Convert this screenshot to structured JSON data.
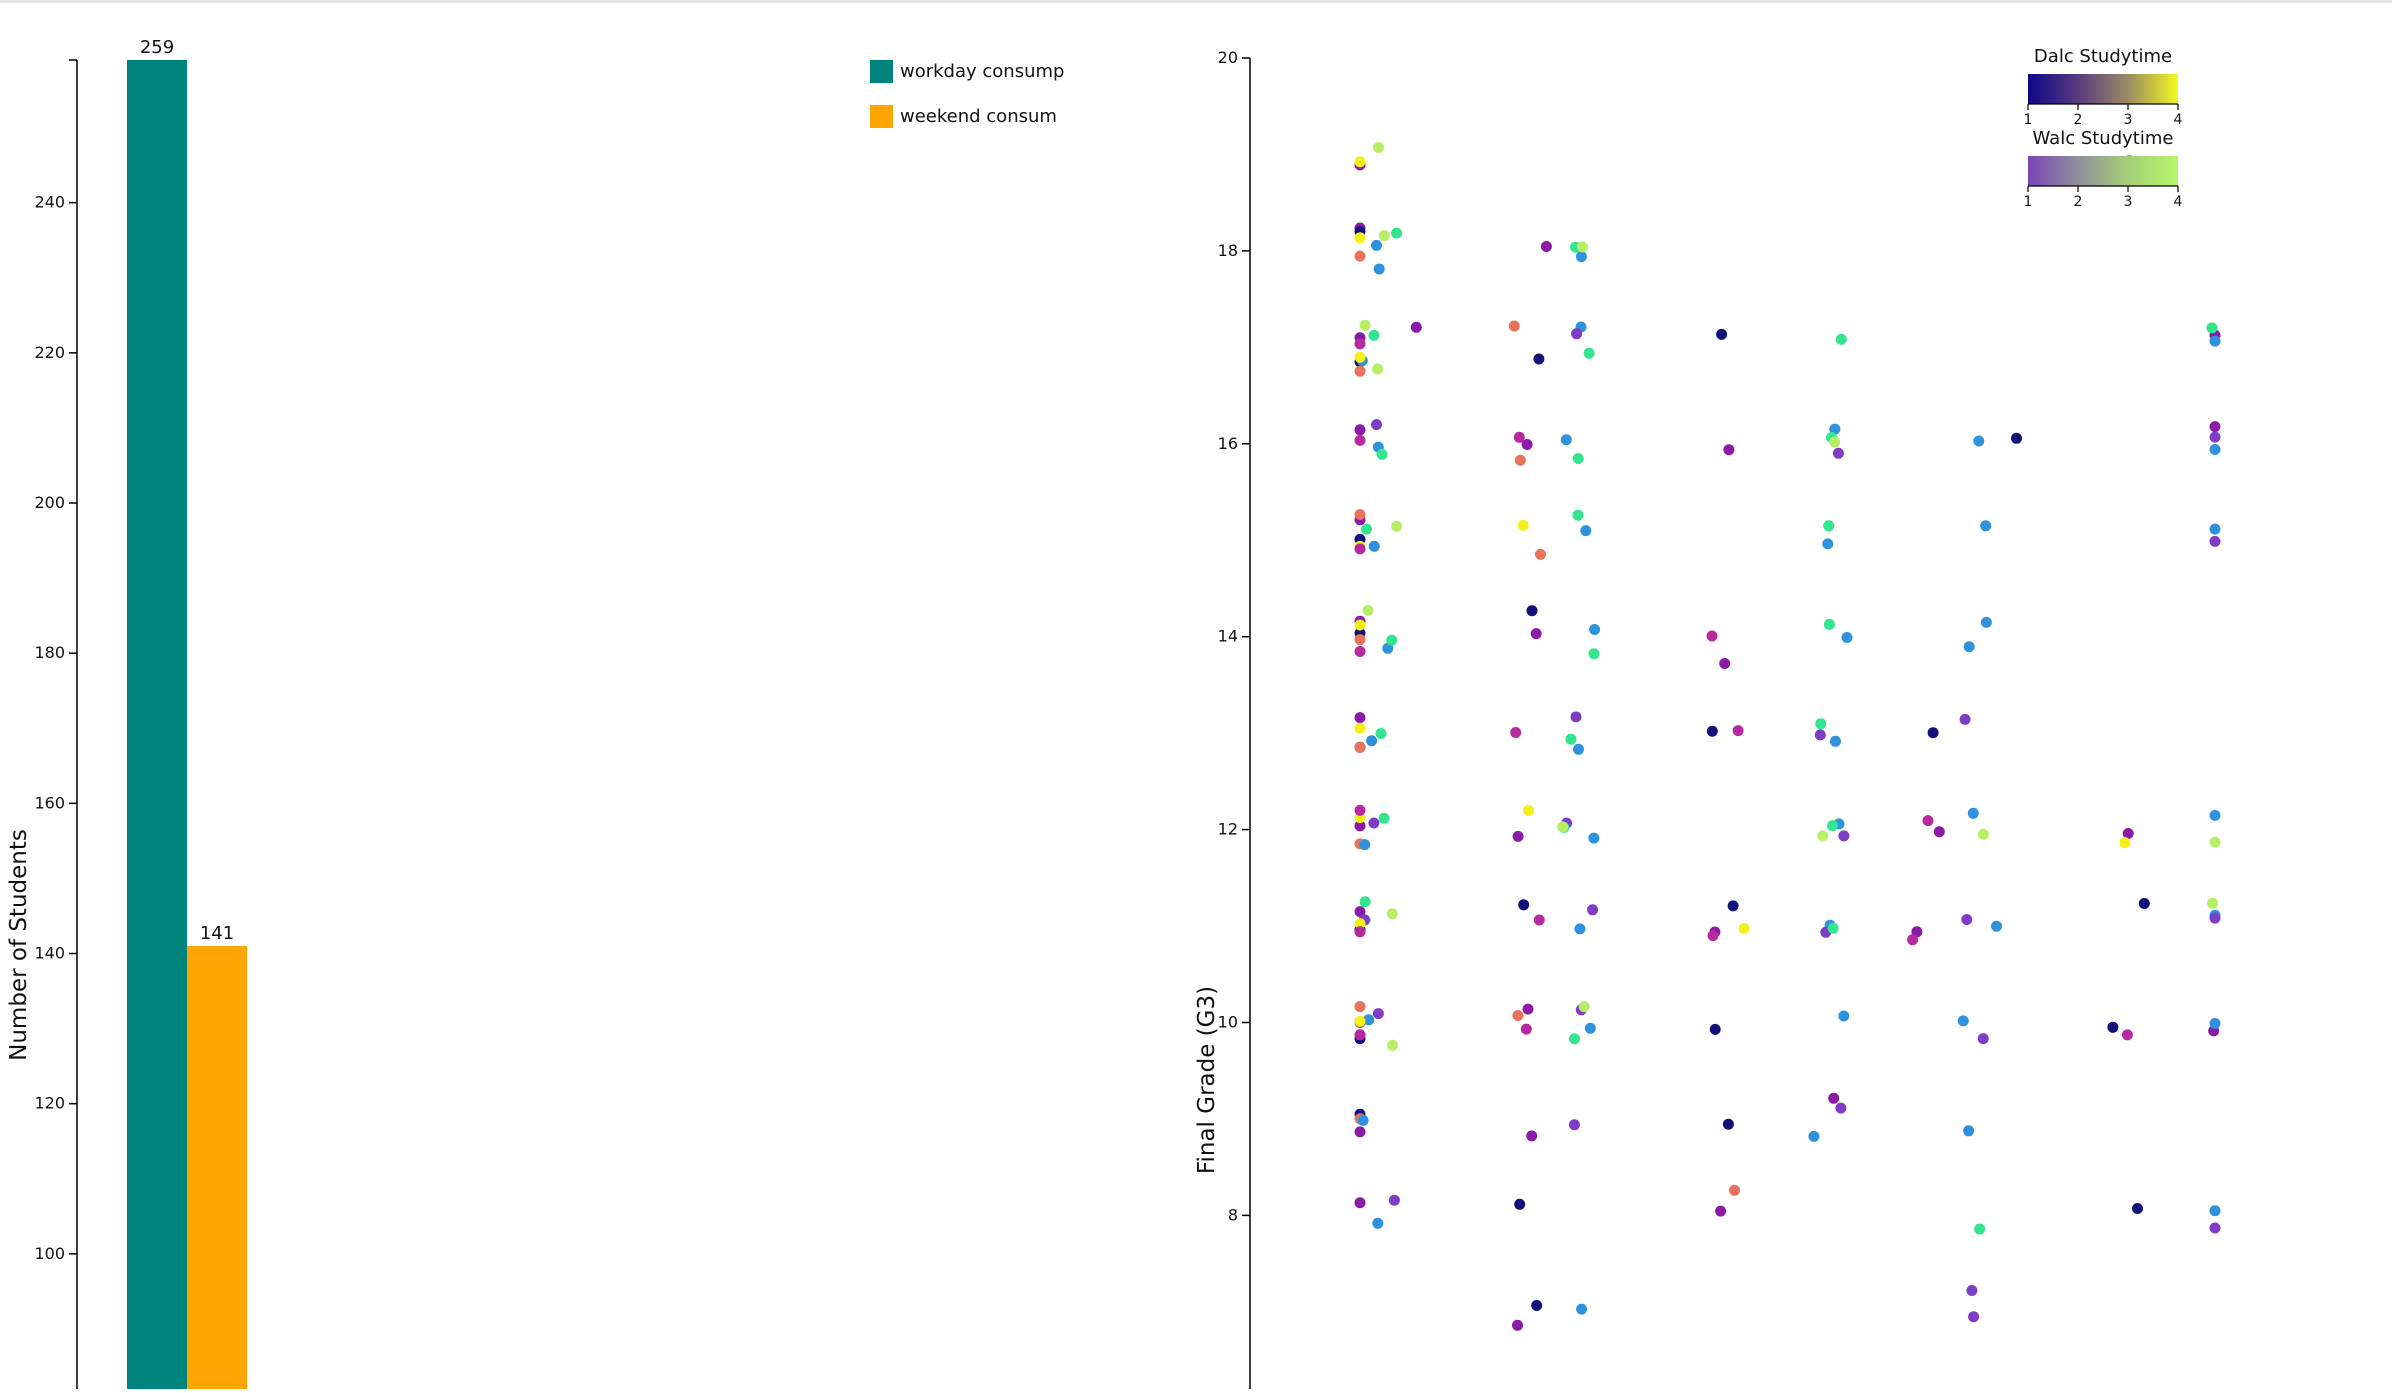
{
  "colors": {
    "workday": "#00847e",
    "weekend": "#ffa500",
    "axis": "#000000"
  },
  "chart_data": [
    {
      "type": "bar",
      "categories": [
        "workday consumption",
        "weekend consumption"
      ],
      "values": [
        259,
        141
      ],
      "value_labels": [
        "259",
        "141"
      ],
      "xlabel": "",
      "ylabel": "Number of Students",
      "ylim": [
        82,
        259
      ],
      "yticks": [
        100,
        120,
        140,
        160,
        180,
        200,
        220,
        240
      ],
      "grid": false,
      "legend": {
        "placement": "top-right",
        "entries": [
          {
            "label": "workday consump",
            "color": "#00847e"
          },
          {
            "label": "weekend consum",
            "color": "#ffa500"
          }
        ]
      }
    },
    {
      "type": "scatter",
      "xlabel": "",
      "ylabel": "Final Grade (G3)",
      "ylim": [
        6.2,
        20
      ],
      "yticks": [
        8,
        10,
        12,
        14,
        16,
        18,
        20
      ],
      "grid": false,
      "color_legends": [
        {
          "title": "Dalc Studytime",
          "scale": "plasma-like",
          "stops": [
            "#0d0887",
            "#5a3a7f",
            "#9b8a63",
            "#f0f921"
          ],
          "ticks": [
            "1",
            "2",
            "3",
            "4"
          ]
        },
        {
          "title": "Walc Studytime",
          "scale": "purple-green",
          "stops": [
            "#7b45b5",
            "#8f8f9a",
            "#a5cf78",
            "#b4f76a"
          ],
          "ticks": [
            "1",
            "2",
            "3",
            "4"
          ]
        }
      ],
      "point_colors": [
        "#12117a",
        "#8b1aa6",
        "#b62aa0",
        "#e8735d",
        "#2f92dc",
        "#7f3cc5",
        "#32e58e",
        "#b6ef66",
        "#f2f218"
      ],
      "series": [
        {
          "name": "",
          "color": "#8b1aa6",
          "points": [
            [
              1,
              18.9
            ],
            [
              1,
              18.2
            ],
            [
              1,
              17.1
            ],
            [
              1,
              16.2
            ],
            [
              1,
              15.2
            ],
            [
              1,
              14.2
            ],
            [
              1,
              13.1
            ],
            [
              1,
              12.0
            ],
            [
              1,
              11.1
            ],
            [
              1,
              10.0
            ],
            [
              1,
              8.8
            ],
            [
              1,
              8.2
            ],
            [
              2,
              17.2
            ],
            [
              3,
              18.0
            ],
            [
              3,
              16.0
            ],
            [
              3,
              14.0
            ],
            [
              3,
              12.0
            ],
            [
              3,
              10.1
            ],
            [
              3,
              8.8
            ],
            [
              3,
              6.9
            ],
            [
              5,
              13.7
            ],
            [
              5,
              11.0
            ],
            [
              5,
              8.1
            ],
            [
              5,
              15.9
            ],
            [
              6,
              9.2
            ],
            [
              7,
              12.0
            ],
            [
              7,
              10.9
            ],
            [
              9,
              11.9
            ],
            [
              10,
              9.9
            ],
            [
              10,
              16.2
            ],
            [
              10,
              17.1
            ]
          ]
        },
        {
          "name": "",
          "color": "#12117a",
          "points": [
            [
              1,
              18.2
            ],
            [
              1,
              16.9
            ],
            [
              1,
              15.0
            ],
            [
              1,
              14.0
            ],
            [
              1,
              12.8
            ],
            [
              1,
              11.0
            ],
            [
              1,
              9.9
            ],
            [
              1,
              9.1
            ],
            [
              3,
              16.9
            ],
            [
              3,
              14.2
            ],
            [
              3,
              11.2
            ],
            [
              3,
              8.1
            ],
            [
              3,
              7.1
            ],
            [
              5,
              17.2
            ],
            [
              5,
              13.0
            ],
            [
              5,
              11.2
            ],
            [
              5,
              10.0
            ],
            [
              5,
              9.0
            ],
            [
              7,
              13.0
            ],
            [
              8,
              16.1
            ],
            [
              9,
              11.2
            ],
            [
              9,
              9.9
            ],
            [
              9,
              8.1
            ]
          ]
        },
        {
          "name": "",
          "color": "#e8735d",
          "points": [
            [
              1,
              18.0
            ],
            [
              1,
              16.8
            ],
            [
              1,
              15.2
            ],
            [
              1,
              13.9
            ],
            [
              1,
              12.9
            ],
            [
              1,
              11.8
            ],
            [
              1,
              10.1
            ],
            [
              1,
              9.0
            ],
            [
              3,
              17.2
            ],
            [
              3,
              15.8
            ],
            [
              3,
              14.8
            ],
            [
              3,
              10.0
            ],
            [
              5,
              8.2
            ]
          ]
        },
        {
          "name": "",
          "color": "#2f92dc",
          "points": [
            [
              1.5,
              18.0
            ],
            [
              1.5,
              17.8
            ],
            [
              1.5,
              16.9
            ],
            [
              1.5,
              16.0
            ],
            [
              1.5,
              15.0
            ],
            [
              1.5,
              13.9
            ],
            [
              1.5,
              12.9
            ],
            [
              1.5,
              11.9
            ],
            [
              1.5,
              11.0
            ],
            [
              1.5,
              10.0
            ],
            [
              1.5,
              9.0
            ],
            [
              1.5,
              7.9
            ],
            [
              3.5,
              18.0
            ],
            [
              3.5,
              17.2
            ],
            [
              3.5,
              16.1
            ],
            [
              3.5,
              15.1
            ],
            [
              3.5,
              14.1
            ],
            [
              3.5,
              12.9
            ],
            [
              3.5,
              11.9
            ],
            [
              3.5,
              11.0
            ],
            [
              3.5,
              10.0
            ],
            [
              3.5,
              7.1
            ],
            [
              6,
              16.2
            ],
            [
              6,
              14.9
            ],
            [
              6,
              14.0
            ],
            [
              6,
              12.9
            ],
            [
              6,
              12.1
            ],
            [
              6,
              11.0
            ],
            [
              6,
              10.1
            ],
            [
              6,
              8.8
            ],
            [
              7.5,
              16.1
            ],
            [
              7.5,
              15.1
            ],
            [
              7.5,
              14.1
            ],
            [
              7.5,
              13.9
            ],
            [
              7.5,
              12.1
            ],
            [
              7.5,
              11.0
            ],
            [
              7.5,
              10.0
            ],
            [
              7.5,
              8.9
            ],
            [
              10,
              17.1
            ],
            [
              10,
              16.0
            ],
            [
              10,
              15.1
            ],
            [
              10,
              12.1
            ],
            [
              10,
              11.1
            ],
            [
              10,
              10.0
            ],
            [
              10,
              8.0
            ],
            [
              9,
              18.9
            ]
          ]
        },
        {
          "name": "",
          "color": "#7f3cc5",
          "points": [
            [
              1.5,
              16.2
            ],
            [
              1.5,
              12.0
            ],
            [
              1.5,
              11.1
            ],
            [
              1.5,
              10.1
            ],
            [
              1.5,
              8.1
            ],
            [
              3.5,
              17.1
            ],
            [
              3.5,
              13.1
            ],
            [
              3.5,
              12.1
            ],
            [
              3.5,
              11.1
            ],
            [
              3.5,
              10.1
            ],
            [
              3.5,
              8.9
            ],
            [
              6,
              15.9
            ],
            [
              6,
              13.0
            ],
            [
              6,
              12.0
            ],
            [
              6,
              11.0
            ],
            [
              6,
              9.1
            ],
            [
              7.5,
              13.1
            ],
            [
              7.5,
              11.1
            ],
            [
              7.5,
              9.9
            ],
            [
              7.5,
              7.2
            ],
            [
              7.5,
              6.9
            ],
            [
              10,
              11.1
            ],
            [
              10,
              16.1
            ],
            [
              10,
              15.0
            ],
            [
              10,
              7.9
            ]
          ]
        },
        {
          "name": "",
          "color": "#32e58e",
          "points": [
            [
              1.5,
              18.2
            ],
            [
              1.5,
              17.1
            ],
            [
              1.5,
              15.9
            ],
            [
              1.5,
              15.1
            ],
            [
              1.5,
              14.0
            ],
            [
              1.5,
              13.0
            ],
            [
              1.5,
              12.1
            ],
            [
              1.5,
              11.2
            ],
            [
              3.5,
              18.1
            ],
            [
              3.5,
              17.0
            ],
            [
              3.5,
              15.9
            ],
            [
              3.5,
              15.2
            ],
            [
              3.5,
              13.8
            ],
            [
              3.5,
              12.9
            ],
            [
              3.5,
              12.0
            ],
            [
              3.5,
              9.9
            ],
            [
              6,
              17.1
            ],
            [
              6,
              16.0
            ],
            [
              6,
              15.1
            ],
            [
              6,
              14.1
            ],
            [
              6,
              13.1
            ],
            [
              6,
              12.0
            ],
            [
              6,
              11.0
            ],
            [
              7.5,
              7.8
            ],
            [
              10,
              17.2
            ]
          ]
        },
        {
          "name": "",
          "color": "#b6ef66",
          "points": [
            [
              1.5,
              19.0
            ],
            [
              1.5,
              18.1
            ],
            [
              1.5,
              17.2
            ],
            [
              1.5,
              16.8
            ],
            [
              1.5,
              15.2
            ],
            [
              1.5,
              14.2
            ],
            [
              1.5,
              11.2
            ],
            [
              1.5,
              9.8
            ],
            [
              3.5,
              18.1
            ],
            [
              3.5,
              12.0
            ],
            [
              3.5,
              10.1
            ],
            [
              6,
              16.0
            ],
            [
              6,
              12.0
            ],
            [
              7.5,
              11.9
            ],
            [
              10,
              11.9
            ],
            [
              10,
              11.2
            ]
          ]
        },
        {
          "name": "",
          "color": "#f2f218",
          "points": [
            [
              1,
              18.9
            ],
            [
              1,
              18.1
            ],
            [
              1,
              16.9
            ],
            [
              1,
              15.0
            ],
            [
              1,
              14.1
            ],
            [
              1,
              13.0
            ],
            [
              1,
              12.1
            ],
            [
              1,
              11.0
            ],
            [
              1,
              10.0
            ],
            [
              3,
              15.2
            ],
            [
              3,
              12.2
            ],
            [
              5,
              11.0
            ],
            [
              9,
              11.9
            ]
          ]
        },
        {
          "name": "",
          "color": "#b62aa0",
          "points": [
            [
              1,
              17.0
            ],
            [
              1,
              16.0
            ],
            [
              1,
              14.9
            ],
            [
              1,
              13.9
            ],
            [
              1,
              12.2
            ],
            [
              1,
              10.9
            ],
            [
              1,
              9.9
            ],
            [
              3,
              16.1
            ],
            [
              3,
              13.0
            ],
            [
              3,
              11.0
            ],
            [
              3,
              9.9
            ],
            [
              5,
              14.0
            ],
            [
              5,
              13.0
            ],
            [
              5,
              10.9
            ],
            [
              7,
              12.1
            ],
            [
              7,
              10.9
            ],
            [
              9,
              9.9
            ]
          ]
        }
      ]
    }
  ]
}
